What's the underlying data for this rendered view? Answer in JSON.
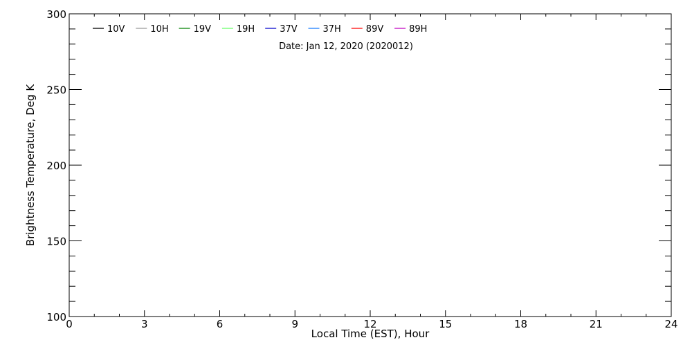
{
  "chart_data": {
    "type": "line",
    "title": "",
    "annotation": "Date: Jan 12, 2020 (2020012)",
    "xlabel": "Local Time (EST), Hour",
    "ylabel": "Brightness Temperature, Deg K",
    "xlim": [
      0,
      24
    ],
    "ylim": [
      100,
      300
    ],
    "xticks": [
      "0",
      "3",
      "6",
      "9",
      "12",
      "15",
      "18",
      "21",
      "24"
    ],
    "yticks": [
      "100",
      "150",
      "200",
      "250",
      "300"
    ],
    "grid": false,
    "legend_placement": "top",
    "series": [
      {
        "name": "10V",
        "color": "#000000",
        "x": [],
        "y": []
      },
      {
        "name": "10H",
        "color": "#999999",
        "x": [],
        "y": []
      },
      {
        "name": "19V",
        "color": "#008000",
        "x": [],
        "y": []
      },
      {
        "name": "19H",
        "color": "#66ff66",
        "x": [],
        "y": []
      },
      {
        "name": "37V",
        "color": "#0000cc",
        "x": [],
        "y": []
      },
      {
        "name": "37H",
        "color": "#1e7fff",
        "x": [],
        "y": []
      },
      {
        "name": "89V",
        "color": "#ff0000",
        "x": [],
        "y": []
      },
      {
        "name": "89H",
        "color": "#c000c0",
        "x": [],
        "y": []
      }
    ]
  }
}
